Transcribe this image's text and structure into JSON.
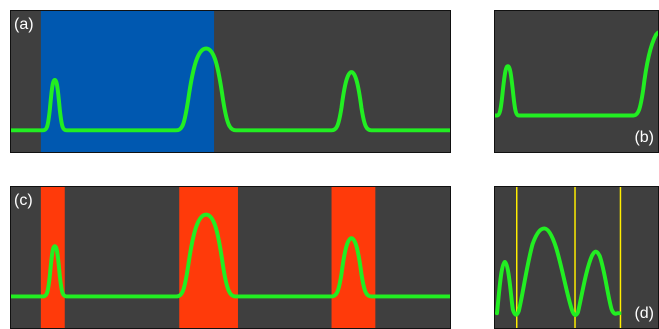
{
  "panels": {
    "a": {
      "label": "(a)"
    },
    "b": {
      "label": "(b)"
    },
    "c": {
      "label": "(c)"
    },
    "d": {
      "label": "(d)"
    }
  },
  "colors": {
    "panel_background": "#3f3f3f",
    "signal": "#22ee22",
    "selection_blue": "#0058b0",
    "selection_red": "#ff3a0a",
    "marker_yellow": "#ffee00"
  }
}
